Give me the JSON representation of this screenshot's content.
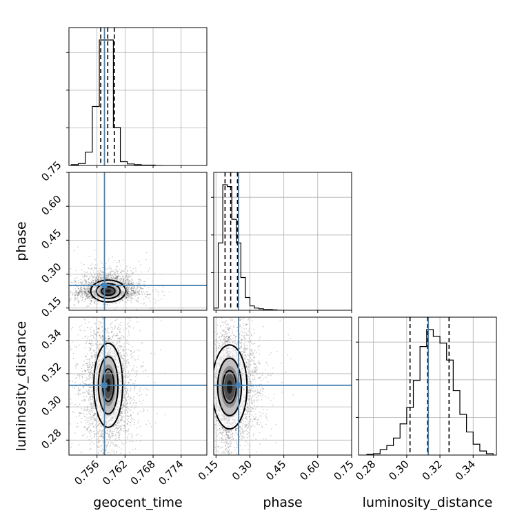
{
  "chart_data": {
    "type": "corner",
    "grid": true,
    "parameters": [
      "geocent_time",
      "phase",
      "luminosity_distance"
    ],
    "truth": {
      "geocent_time": 0.7576,
      "phase": 0.25,
      "luminosity_distance": 0.313
    },
    "truth_color": "#4682b4",
    "axes": {
      "geocent_time": {
        "xlabel": "geocent_time",
        "range": [
          0.75,
          0.7795
        ],
        "ticks": [
          0.756,
          0.762,
          0.768,
          0.774
        ],
        "tick_labels": [
          "0.756",
          "0.762",
          "0.768",
          "0.774"
        ]
      },
      "phase": {
        "xlabel": "phase",
        "ylabel": "phase",
        "range": [
          0.14,
          0.75
        ],
        "ticks": [
          0.15,
          0.3,
          0.45,
          0.6,
          0.75
        ],
        "tick_labels": [
          "0.15",
          "0.30",
          "0.45",
          "0.60",
          "0.75"
        ]
      },
      "luminosity_distance": {
        "xlabel": "luminosity_distance",
        "ylabel": "luminosity_distance",
        "range": [
          0.271,
          0.354
        ],
        "ticks": [
          0.28,
          0.3,
          0.32,
          0.34
        ],
        "tick_labels": [
          "0.28",
          "0.30",
          "0.32",
          "0.34"
        ]
      }
    },
    "histograms": {
      "geocent_time": {
        "edges": [
          0.7505,
          0.752,
          0.7535,
          0.755,
          0.7565,
          0.758,
          0.7595,
          0.761,
          0.7625,
          0.764,
          0.7655,
          0.767,
          0.7685,
          0.77
        ],
        "counts": [
          2,
          5,
          35,
          155,
          330,
          330,
          100,
          10,
          4,
          2,
          1,
          1,
          0
        ],
        "quantiles": [
          0.7568,
          0.7583,
          0.7597
        ]
      },
      "phase": {
        "edges": [
          0.14,
          0.16,
          0.18,
          0.2,
          0.22,
          0.24,
          0.26,
          0.28,
          0.3,
          0.32,
          0.34,
          0.36,
          0.38,
          0.4,
          0.42,
          0.44
        ],
        "counts": [
          6,
          185,
          345,
          340,
          250,
          185,
          90,
          35,
          12,
          6,
          4,
          2,
          2,
          1,
          0
        ],
        "quantiles": [
          0.19,
          0.215,
          0.245
        ]
      },
      "luminosity_distance": {
        "edges": [
          0.276,
          0.28,
          0.284,
          0.288,
          0.292,
          0.296,
          0.3,
          0.304,
          0.308,
          0.312,
          0.316,
          0.32,
          0.324,
          0.328,
          0.332,
          0.336,
          0.34,
          0.344,
          0.348,
          0.352
        ],
        "counts": [
          1,
          2,
          8,
          14,
          25,
          46,
          70,
          110,
          160,
          185,
          175,
          165,
          140,
          95,
          60,
          34,
          16,
          6,
          2
        ],
        "quantiles": [
          0.302,
          0.3125,
          0.3255
        ]
      }
    },
    "density_2d": {
      "phase_vs_geocent_time": {
        "center": [
          0.7584,
          0.225
        ],
        "spread": [
          0.0017,
          0.022
        ],
        "scatter_spread": [
          0.0045,
          0.06
        ]
      },
      "luminosity_distance_vs_geocent_time": {
        "center": [
          0.7584,
          0.313
        ],
        "spread": [
          0.0014,
          0.0115
        ],
        "scatter_spread": [
          0.004,
          0.02
        ]
      },
      "luminosity_distance_vs_phase": {
        "center": [
          0.21,
          0.312
        ],
        "spread": [
          0.035,
          0.0115
        ],
        "scatter_spread": [
          0.09,
          0.02
        ]
      }
    }
  }
}
